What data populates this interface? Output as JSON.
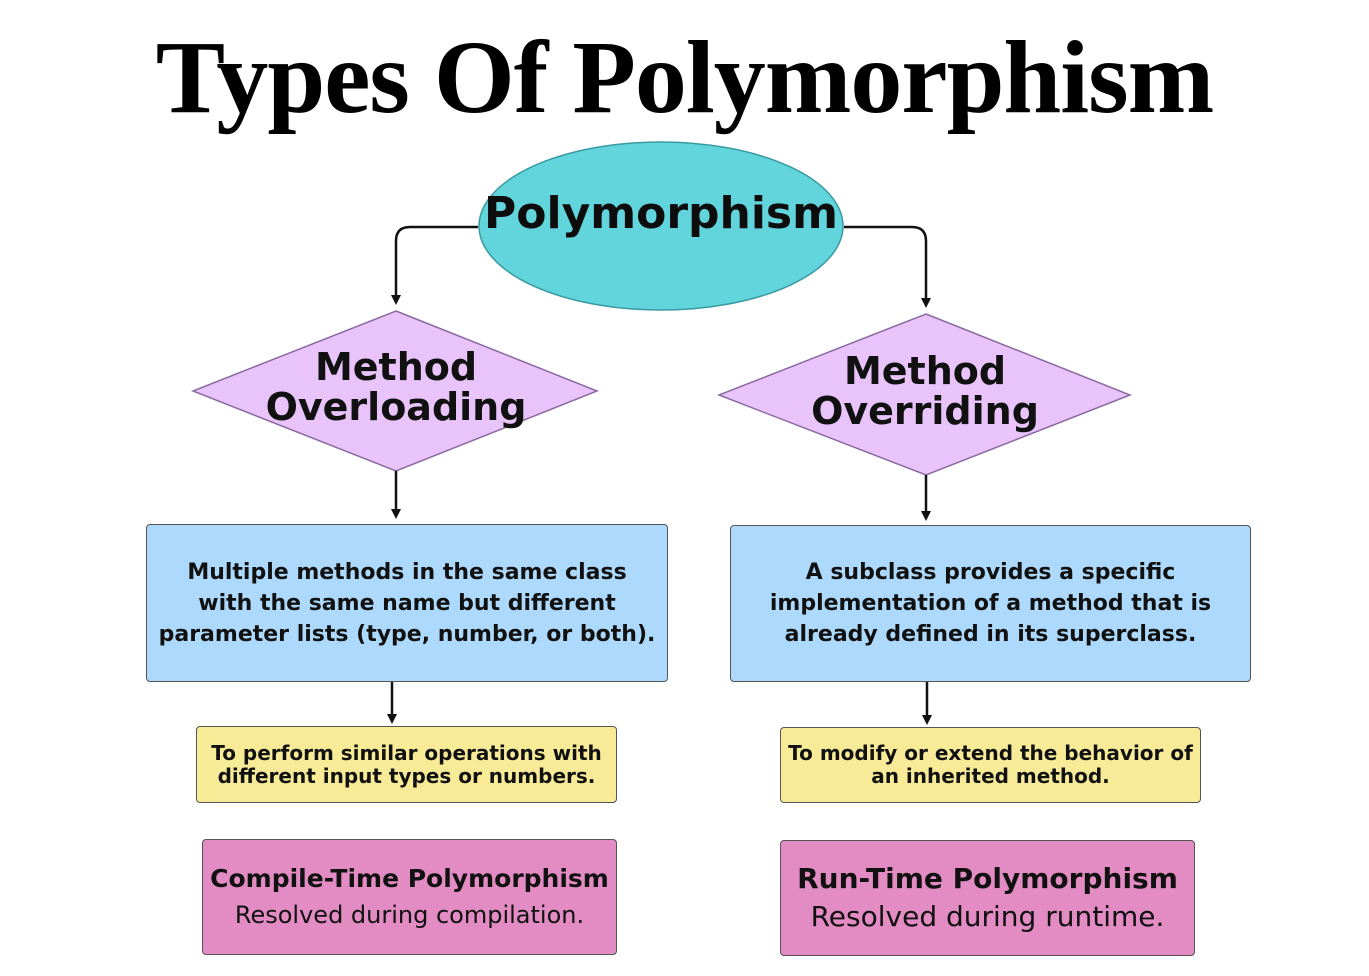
{
  "title": "Types Of Polymorphism",
  "root": {
    "label": "Polymorphism"
  },
  "left": {
    "type_line1": "Method",
    "type_line2": "Overloading",
    "definition": [
      "Multiple methods in the same class",
      "with the same name but different",
      "parameter lists (type, number, or both)."
    ],
    "purpose": [
      "To perform similar operations with",
      "different input types or numbers."
    ],
    "kind_title": "Compile-Time Polymorphism",
    "kind_desc": "Resolved during compilation."
  },
  "right": {
    "type_line1": "Method",
    "type_line2": "Overriding",
    "definition": [
      "A subclass provides a specific",
      "implementation of a method that is",
      "already defined in its superclass."
    ],
    "purpose": [
      "To modify or extend the behavior of",
      "an inherited method."
    ],
    "kind_title": "Run-Time Polymorphism",
    "kind_desc": "Resolved during runtime."
  },
  "colors": {
    "ellipse_fill": "#62d4dc",
    "diamond_fill": "#e8c4fb",
    "definition_fill": "#addafc",
    "purpose_fill": "#f8eb98",
    "kind_fill": "#e38bc3"
  }
}
